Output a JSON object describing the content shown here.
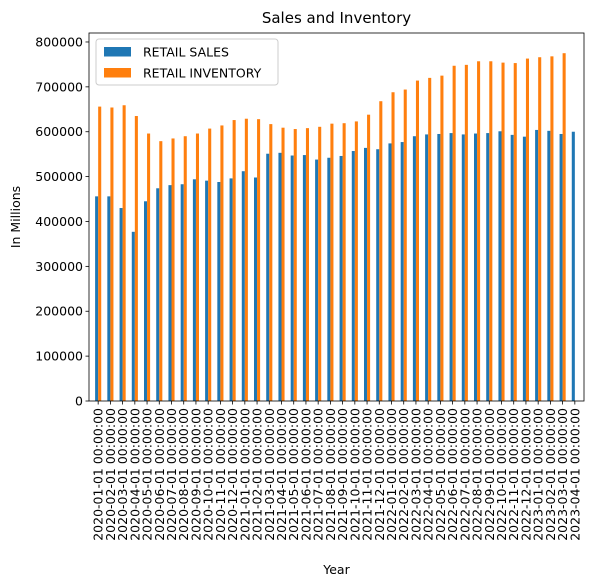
{
  "chart_data": {
    "type": "bar",
    "title": "Sales and Inventory",
    "xlabel": "Year",
    "ylabel": "In Millions",
    "ylim": [
      0,
      820000
    ],
    "yticks": [
      0,
      100000,
      200000,
      300000,
      400000,
      500000,
      600000,
      700000,
      800000
    ],
    "ytick_labels": [
      "0",
      "100000",
      "200000",
      "300000",
      "400000",
      "500000",
      "600000",
      "700000",
      "800000"
    ],
    "grid": false,
    "legend_position": "top-left",
    "categories": [
      "2020-01-01 00:00:00",
      "2020-02-01 00:00:00",
      "2020-03-01 00:00:00",
      "2020-04-01 00:00:00",
      "2020-05-01 00:00:00",
      "2020-06-01 00:00:00",
      "2020-07-01 00:00:00",
      "2020-08-01 00:00:00",
      "2020-09-01 00:00:00",
      "2020-10-01 00:00:00",
      "2020-11-01 00:00:00",
      "2020-12-01 00:00:00",
      "2021-01-01 00:00:00",
      "2021-02-01 00:00:00",
      "2021-03-01 00:00:00",
      "2021-04-01 00:00:00",
      "2021-05-01 00:00:00",
      "2021-06-01 00:00:00",
      "2021-07-01 00:00:00",
      "2021-08-01 00:00:00",
      "2021-09-01 00:00:00",
      "2021-10-01 00:00:00",
      "2021-11-01 00:00:00",
      "2021-12-01 00:00:00",
      "2022-01-01 00:00:00",
      "2022-02-01 00:00:00",
      "2022-03-01 00:00:00",
      "2022-04-01 00:00:00",
      "2022-05-01 00:00:00",
      "2022-06-01 00:00:00",
      "2022-07-01 00:00:00",
      "2022-08-01 00:00:00",
      "2022-09-01 00:00:00",
      "2022-10-01 00:00:00",
      "2022-11-01 00:00:00",
      "2022-12-01 00:00:00",
      "2023-01-01 00:00:00",
      "2023-02-01 00:00:00",
      "2023-03-01 00:00:00",
      "2023-04-01 00:00:00"
    ],
    "series": [
      {
        "name": "RETAIL SALES",
        "color": "#1f77b4",
        "values": [
          456000,
          456000,
          430000,
          377000,
          445000,
          474000,
          481000,
          483000,
          494000,
          491000,
          488000,
          496000,
          512000,
          498000,
          551000,
          553000,
          547000,
          548000,
          538000,
          542000,
          546000,
          557000,
          564000,
          561000,
          574000,
          577000,
          590000,
          594000,
          595000,
          597000,
          594000,
          596000,
          597000,
          601000,
          593000,
          589000,
          604000,
          602000,
          595000,
          600000
        ]
      },
      {
        "name": "RETAIL INVENTORY",
        "color": "#ff7f0e",
        "values": [
          656000,
          654000,
          659000,
          635000,
          596000,
          579000,
          585000,
          590000,
          596000,
          607000,
          614000,
          626000,
          629000,
          628000,
          617000,
          609000,
          606000,
          608000,
          611000,
          618000,
          619000,
          623000,
          638000,
          668000,
          688000,
          694000,
          714000,
          720000,
          725000,
          747000,
          749000,
          757000,
          757000,
          754000,
          753000,
          763000,
          766000,
          768000,
          775000,
          null
        ]
      }
    ]
  }
}
